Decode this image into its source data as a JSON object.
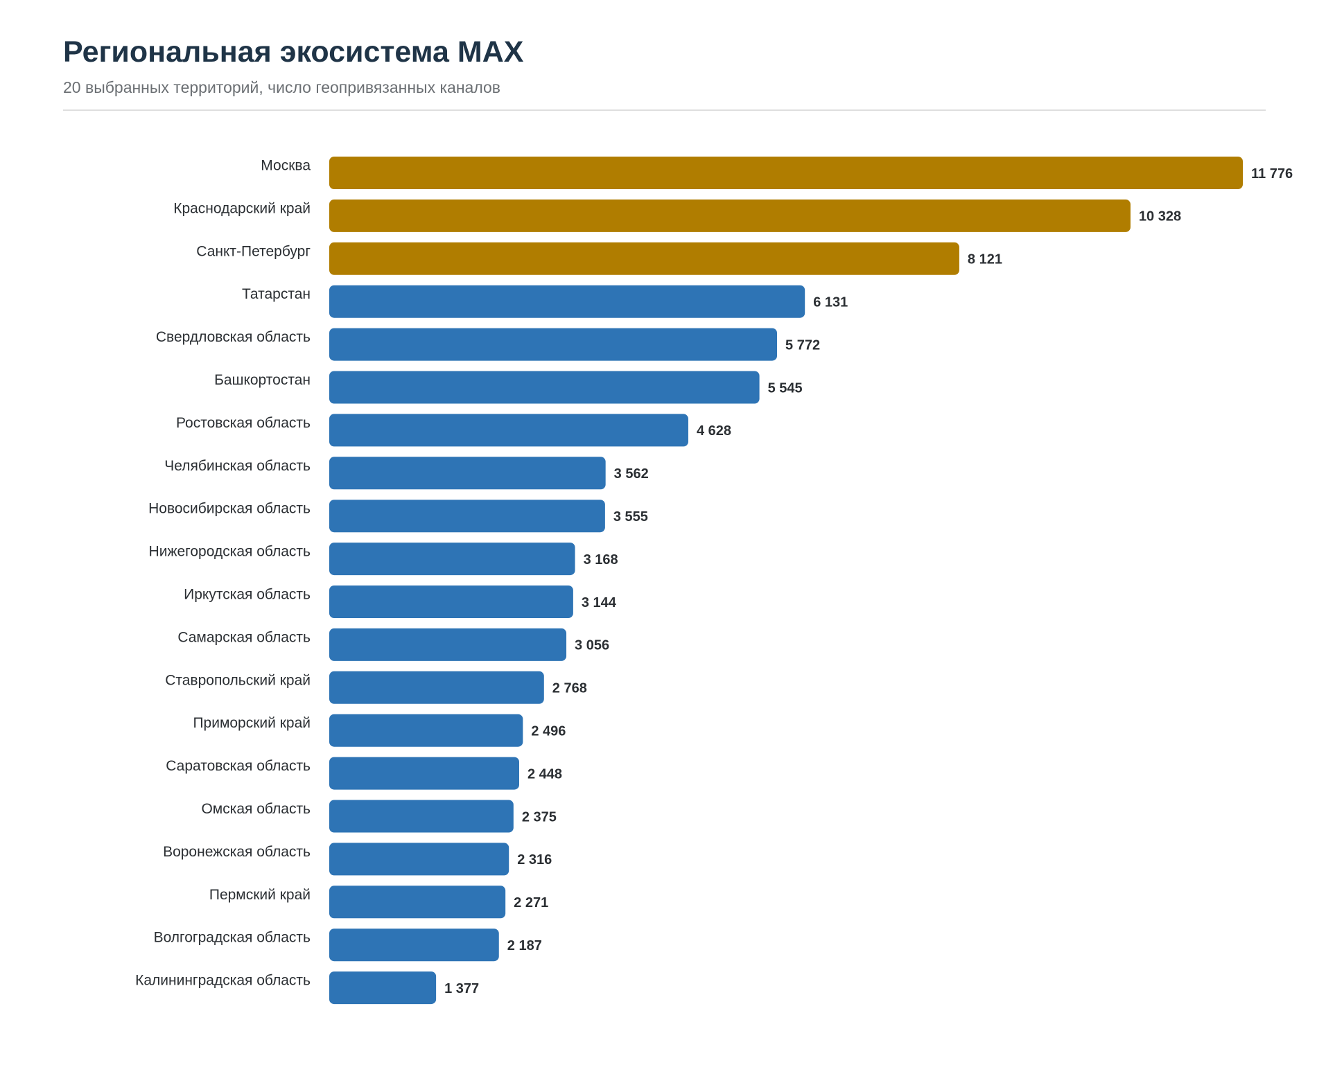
{
  "header": {
    "title": "Региональная экосистема MAX",
    "subtitle": "20 выбранных территорий, число геопривязанных каналов"
  },
  "colors": {
    "highlight": "#b07d00",
    "default": "#2e74b5"
  },
  "chart_data": {
    "type": "bar",
    "orientation": "horizontal",
    "title": "Региональная экосистема MAX",
    "subtitle": "20 выбранных территорий, число геопривязанных каналов",
    "categories": [
      "Москва",
      "Краснодарский край",
      "Санкт-Петербург",
      "Татарстан",
      "Свердловская область",
      "Башкортостан",
      "Ростовская область",
      "Челябинская область",
      "Новосибирская область",
      "Нижегородская область",
      "Иркутская область",
      "Самарская область",
      "Ставропольский край",
      "Приморский край",
      "Саратовская область",
      "Омская область",
      "Воронежская область",
      "Пермский край",
      "Волгоградская область",
      "Калининградская область"
    ],
    "values": [
      11776,
      10328,
      8121,
      6131,
      5772,
      5545,
      4628,
      3562,
      3555,
      3168,
      3144,
      3056,
      2768,
      2496,
      2448,
      2375,
      2316,
      2271,
      2187,
      1377
    ],
    "value_labels": [
      "11 776",
      "10 328",
      "8 121",
      "6 131",
      "5 772",
      "5 545",
      "4 628",
      "3 562",
      "3 555",
      "3 168",
      "3 144",
      "3 056",
      "2 768",
      "2 496",
      "2 448",
      "2 375",
      "2 316",
      "2 271",
      "2 187",
      "1 377"
    ],
    "highlight_top_n": 3,
    "xlim": [
      0,
      11776
    ],
    "grid": false,
    "legend": "none"
  }
}
